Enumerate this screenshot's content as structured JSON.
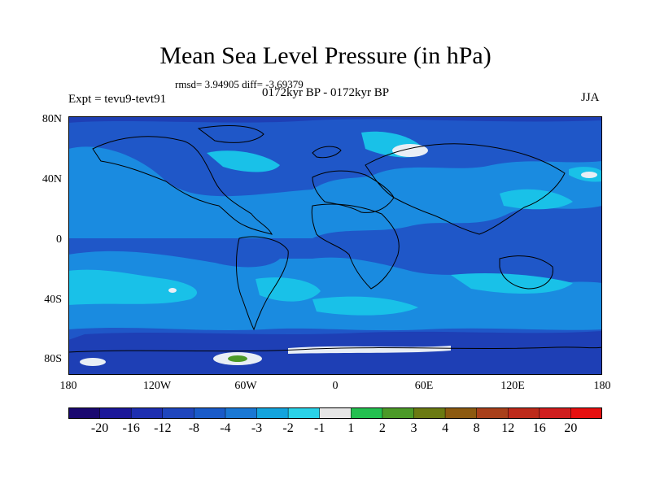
{
  "title": "Mean Sea Level Pressure (in hPa)",
  "stats": "rmsd= 3.94905 diff= -3.69379",
  "period": "0172kyr BP - 0172kyr BP",
  "experiment": "Expt = tevu9-tevt91",
  "season": "JJA",
  "lat_labels": [
    "80N",
    "40N",
    "0",
    "40S",
    "80S"
  ],
  "lon_labels": [
    "180",
    "120W",
    "60W",
    "0",
    "60E",
    "120E",
    "180"
  ],
  "colorbar": {
    "labels": [
      "-20",
      "-16",
      "-12",
      "-8",
      "-4",
      "-3",
      "-2",
      "-1",
      "1",
      "2",
      "3",
      "4",
      "8",
      "12",
      "16",
      "20"
    ],
    "colors": [
      "#1a0870",
      "#1c1899",
      "#1e2fb0",
      "#1f46bd",
      "#1a5bc8",
      "#1a78d4",
      "#14a4dd",
      "#2ad2e8",
      "#e6e6e6",
      "#24c050",
      "#4c9a28",
      "#6b7a12",
      "#8c5a10",
      "#a8401a",
      "#bd2a1a",
      "#d01e1e",
      "#e61010"
    ]
  },
  "colors": {
    "base": "#1f57c8",
    "mid": "#1a8be0",
    "light": "#19c1e8",
    "pale": "#e8eef5",
    "deep": "#1e3fb5"
  }
}
